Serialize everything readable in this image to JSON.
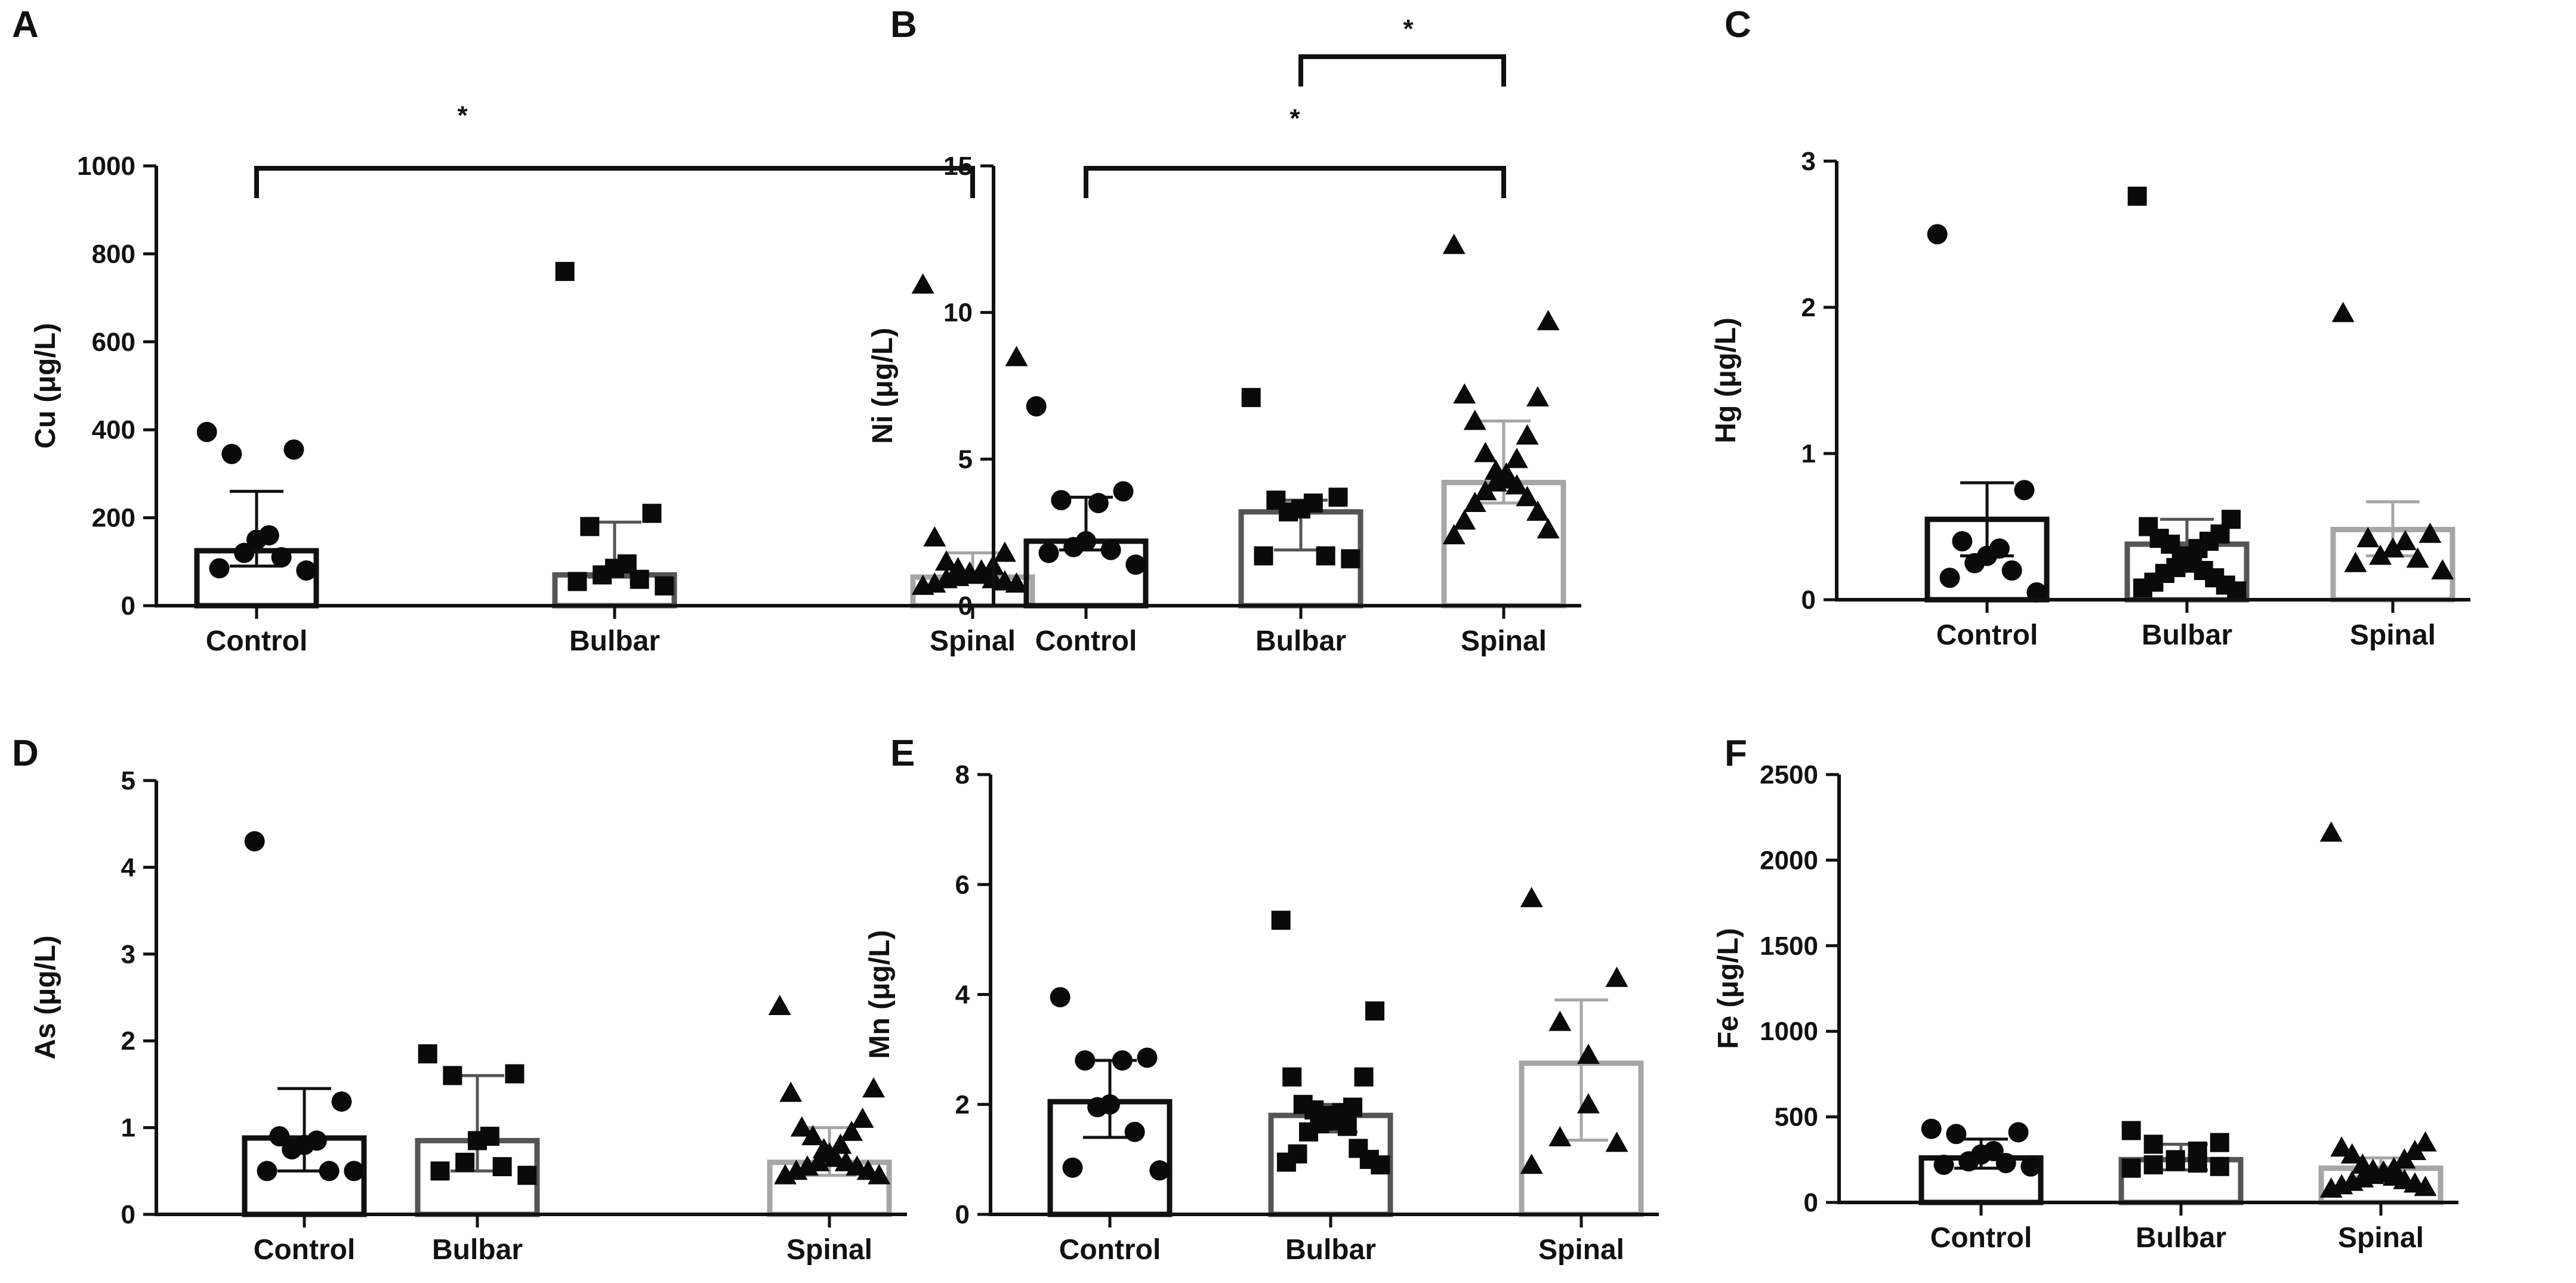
{
  "colors": {
    "Control": "#111111",
    "Bulbar": "#555555",
    "Spinal": "#a6a6a6",
    "markers": "#0a0a0a"
  },
  "chart_data": [
    {
      "type": "bar",
      "panel": "A",
      "ylabel": "Cu (μg/L)",
      "ylim": [
        0,
        1000
      ],
      "yticks": [
        0,
        200,
        400,
        600,
        800,
        1000
      ],
      "categories": [
        "Control",
        "Bulbar",
        "Spinal"
      ],
      "values": [
        125,
        70,
        65
      ],
      "errors": [
        [
          90,
          260
        ],
        [
          65,
          190
        ],
        [
          55,
          120
        ]
      ],
      "markers": [
        "circle",
        "square",
        "triangle"
      ],
      "points": [
        [
          395,
          355,
          345,
          160,
          150,
          120,
          110,
          85,
          80
        ],
        [
          760,
          210,
          180,
          95,
          85,
          70,
          60,
          55,
          45
        ],
        [
          730,
          565,
          155,
          120,
          100,
          90,
          85,
          80,
          75,
          70,
          70,
          65,
          60,
          60,
          55,
          50,
          50,
          45
        ]
      ],
      "significance": [
        {
          "from": 0,
          "to": 2,
          "label": "*"
        }
      ]
    },
    {
      "type": "bar",
      "panel": "B",
      "ylabel": "Ni (μg/L)",
      "ylim": [
        0,
        15
      ],
      "yticks": [
        0,
        5,
        10,
        15
      ],
      "categories": [
        "Control",
        "Bulbar",
        "Spinal"
      ],
      "values": [
        2.2,
        3.2,
        4.2
      ],
      "errors": [
        [
          1.9,
          3.7
        ],
        [
          1.9,
          3.6
        ],
        [
          3.5,
          6.3
        ]
      ],
      "markers": [
        "circle",
        "square",
        "triangle"
      ],
      "points": [
        [
          6.8,
          3.9,
          3.6,
          3.5,
          2.2,
          2.0,
          1.9,
          1.8,
          1.4
        ],
        [
          7.1,
          3.7,
          3.6,
          3.5,
          3.3,
          3.2,
          1.7,
          1.7,
          1.6
        ],
        [
          12.3,
          9.7,
          7.2,
          7.1,
          6.3,
          5.8,
          5.2,
          5.0,
          4.6,
          4.5,
          4.3,
          4.2,
          4.1,
          3.9,
          3.7,
          3.5,
          3.2,
          2.9,
          2.6,
          2.4
        ]
      ],
      "significance": [
        {
          "from": 0,
          "to": 2,
          "label": "*"
        },
        {
          "from": 1,
          "to": 2,
          "label": "*"
        }
      ]
    },
    {
      "type": "bar",
      "panel": "C",
      "ylabel": "Hg (μg/L)",
      "ylim": [
        0,
        3
      ],
      "yticks": [
        0,
        1,
        2,
        3
      ],
      "categories": [
        "Control",
        "Bulbar",
        "Spinal"
      ],
      "values": [
        0.55,
        0.38,
        0.48
      ],
      "errors": [
        [
          0.3,
          0.8
        ],
        [
          0.2,
          0.55
        ],
        [
          0.3,
          0.67
        ]
      ],
      "markers": [
        "circle",
        "square",
        "triangle"
      ],
      "points": [
        [
          2.5,
          0.75,
          0.4,
          0.35,
          0.3,
          0.25,
          0.2,
          0.15,
          0.05
        ],
        [
          2.76,
          0.55,
          0.5,
          0.45,
          0.42,
          0.4,
          0.38,
          0.35,
          0.3,
          0.28,
          0.25,
          0.22,
          0.2,
          0.18,
          0.15,
          0.12,
          0.1,
          0.08,
          0.06
        ],
        [
          1.96,
          0.45,
          0.42,
          0.4,
          0.35,
          0.3,
          0.28,
          0.25,
          0.2
        ]
      ],
      "significance": []
    },
    {
      "type": "bar",
      "panel": "D",
      "ylabel": "As (μg/L)",
      "ylim": [
        0,
        5
      ],
      "yticks": [
        0,
        1,
        2,
        3,
        4,
        5
      ],
      "categories": [
        "Control",
        "Bulbar",
        "Spinal"
      ],
      "values": [
        0.88,
        0.85,
        0.6
      ],
      "errors": [
        [
          0.5,
          1.45
        ],
        [
          0.5,
          1.6
        ],
        [
          0.45,
          1.0
        ]
      ],
      "markers": [
        "circle",
        "square",
        "triangle"
      ],
      "points": [
        [
          4.3,
          1.3,
          0.9,
          0.85,
          0.8,
          0.75,
          0.5,
          0.5,
          0.5
        ],
        [
          1.85,
          1.62,
          1.6,
          0.9,
          0.85,
          0.6,
          0.55,
          0.5,
          0.45
        ],
        [
          2.4,
          1.45,
          1.4,
          1.1,
          1.0,
          0.95,
          0.9,
          0.8,
          0.75,
          0.7,
          0.65,
          0.6,
          0.6,
          0.55,
          0.55,
          0.5,
          0.5,
          0.45,
          0.45
        ]
      ],
      "significance": []
    },
    {
      "type": "bar",
      "panel": "E",
      "ylabel": "Mn (μg/L)",
      "ylim": [
        0,
        8
      ],
      "yticks": [
        0,
        2,
        4,
        6,
        8
      ],
      "categories": [
        "Control",
        "Bulbar",
        "Spinal"
      ],
      "values": [
        2.05,
        1.8,
        2.75
      ],
      "errors": [
        [
          1.4,
          2.8
        ],
        [
          1.5,
          2.0
        ],
        [
          1.35,
          3.9
        ]
      ],
      "markers": [
        "circle",
        "square",
        "triangle"
      ],
      "points": [
        [
          3.95,
          2.85,
          2.8,
          2.8,
          2.0,
          1.95,
          1.5,
          0.85,
          0.8
        ],
        [
          5.35,
          3.7,
          2.5,
          2.5,
          2.0,
          1.95,
          1.9,
          1.85,
          1.8,
          1.75,
          1.7,
          1.65,
          1.6,
          1.5,
          1.2,
          1.1,
          1.0,
          0.95,
          0.9
        ],
        [
          5.75,
          4.3,
          3.5,
          2.9,
          2.0,
          1.4,
          1.3,
          0.9
        ]
      ],
      "significance": []
    },
    {
      "type": "bar",
      "panel": "F",
      "ylabel": "Fe (μg/L)",
      "ylim": [
        0,
        2500
      ],
      "yticks": [
        0,
        500,
        1000,
        1500,
        2000,
        2500
      ],
      "categories": [
        "Control",
        "Bulbar",
        "Spinal"
      ],
      "values": [
        260,
        250,
        200
      ],
      "errors": [
        [
          200,
          370
        ],
        [
          190,
          340
        ],
        [
          150,
          260
        ]
      ],
      "markers": [
        "circle",
        "square",
        "triangle"
      ],
      "points": [
        [
          430,
          410,
          400,
          300,
          280,
          240,
          230,
          220,
          210
        ],
        [
          420,
          350,
          340,
          300,
          250,
          240,
          230,
          220,
          210,
          200
        ],
        [
          2160,
          350,
          320,
          300,
          280,
          250,
          220,
          200,
          190,
          180,
          170,
          160,
          150,
          140,
          130,
          120,
          110,
          100,
          90,
          80
        ]
      ],
      "significance": []
    }
  ]
}
